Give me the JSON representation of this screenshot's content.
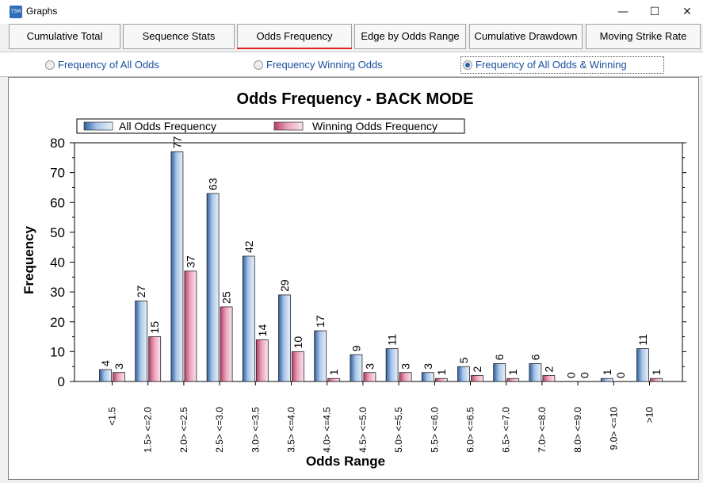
{
  "window": {
    "title": "Graphs",
    "icon_text": "TSM"
  },
  "tabs": [
    {
      "label": "Cumulative Total"
    },
    {
      "label": "Sequence Stats"
    },
    {
      "label": "Odds Frequency",
      "active": true
    },
    {
      "label": "Edge by Odds Range"
    },
    {
      "label": "Cumulative Drawdown"
    },
    {
      "label": "Moving Strike Rate"
    }
  ],
  "radios": [
    {
      "label": "Frequency of All Odds",
      "selected": false
    },
    {
      "label": "Frequency Winning Odds",
      "selected": false
    },
    {
      "label": "Frequency of All Odds & Winning Odds",
      "selected": true
    }
  ],
  "colors": {
    "accent": "#e02020",
    "series_all": "#6f9bd0",
    "series_win": "#e08aa6",
    "link": "#1a4fa0"
  },
  "chart_data": {
    "type": "bar",
    "title": "Odds Frequency - BACK MODE",
    "xlabel": "Odds Range",
    "ylabel": "Frequency",
    "ylim": [
      0,
      80
    ],
    "yticks": [
      0,
      10,
      20,
      30,
      40,
      50,
      60,
      70,
      80
    ],
    "legend_position": "top-left",
    "categories": [
      "<1.5",
      "1.5> <=2.0",
      "2.0> <=2.5",
      "2.5> <=3.0",
      "3.0> <=3.5",
      "3.5> <=4.0",
      "4.0> <=4.5",
      "4.5> <=5.0",
      "5.0> <=5.5",
      "5.5> <=6.0",
      "6.0> <=6.5",
      "6.5> <=7.0",
      "7.0> <=8.0",
      "8.0> <=9.0",
      "9.0> <=10",
      ">10"
    ],
    "series": [
      {
        "name": "All Odds Frequency",
        "values": [
          4,
          27,
          77,
          63,
          42,
          29,
          17,
          9,
          11,
          3,
          5,
          6,
          6,
          0,
          1,
          11
        ]
      },
      {
        "name": "Winning Odds Frequency",
        "values": [
          3,
          15,
          37,
          25,
          14,
          10,
          1,
          3,
          3,
          1,
          2,
          1,
          2,
          0,
          0,
          1
        ]
      }
    ]
  }
}
